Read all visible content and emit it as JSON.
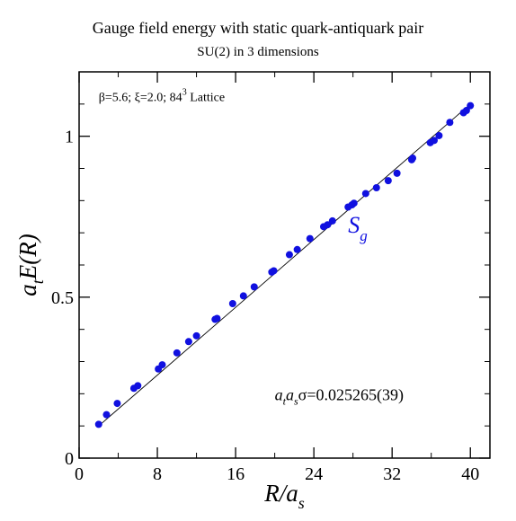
{
  "chart_data": {
    "type": "scatter",
    "title": "Gauge field energy with static quark-antiquark pair",
    "subtitle": "SU(2) in 3 dimensions",
    "xlabel": "R/a_s",
    "ylabel": "a_t E(R)",
    "xlabel_main": "R/a",
    "xlabel_sub": "s",
    "ylabel_pre": "a",
    "ylabel_sub": "t",
    "ylabel_post": "E(R)",
    "xlim": [
      0,
      42
    ],
    "ylim": [
      0,
      1.2
    ],
    "x_ticks": [
      0,
      8,
      16,
      24,
      32,
      40
    ],
    "y_ticks": [
      0,
      0.5,
      1
    ],
    "x_tick_labels": [
      "0",
      "8",
      "16",
      "24",
      "32",
      "40"
    ],
    "y_tick_labels": [
      "0",
      "0.5",
      "1"
    ],
    "grid": false,
    "legend": "none",
    "annotations": {
      "lattice": {
        "prefix": "β=5.6;  ξ=2.0; 84",
        "sup": "3",
        "suffix": " Lattice",
        "at": [
          2,
          1.11
        ]
      },
      "series_label": {
        "main": "S",
        "sub": "g",
        "at": [
          27.5,
          0.7
        ]
      },
      "sigma": {
        "a": "a",
        "sub1": "t",
        "a2": "a",
        "sub2": "s",
        "rest": "σ=0.025265(39)",
        "at": [
          20,
          0.18
        ]
      }
    },
    "fit_line": {
      "x": [
        2,
        40
      ],
      "y": [
        0.1,
        1.1
      ]
    },
    "series": [
      {
        "name": "S_g",
        "color": "#1010e0",
        "points": [
          [
            2.0,
            0.105
          ],
          [
            2.8,
            0.135
          ],
          [
            3.9,
            0.17
          ],
          [
            5.6,
            0.217
          ],
          [
            6.0,
            0.225
          ],
          [
            8.1,
            0.277
          ],
          [
            8.5,
            0.29
          ],
          [
            10.0,
            0.327
          ],
          [
            11.2,
            0.362
          ],
          [
            12.0,
            0.38
          ],
          [
            13.9,
            0.431
          ],
          [
            14.1,
            0.434
          ],
          [
            15.7,
            0.48
          ],
          [
            16.8,
            0.504
          ],
          [
            17.9,
            0.532
          ],
          [
            19.7,
            0.578
          ],
          [
            19.9,
            0.582
          ],
          [
            21.5,
            0.632
          ],
          [
            22.3,
            0.648
          ],
          [
            23.6,
            0.682
          ],
          [
            25.0,
            0.719
          ],
          [
            25.4,
            0.725
          ],
          [
            25.9,
            0.737
          ],
          [
            27.5,
            0.78
          ],
          [
            27.9,
            0.787
          ],
          [
            28.1,
            0.792
          ],
          [
            29.3,
            0.822
          ],
          [
            30.4,
            0.84
          ],
          [
            31.6,
            0.862
          ],
          [
            32.5,
            0.885
          ],
          [
            34.0,
            0.927
          ],
          [
            34.1,
            0.932
          ],
          [
            35.9,
            0.98
          ],
          [
            36.3,
            0.987
          ],
          [
            36.8,
            1.002
          ],
          [
            37.9,
            1.043
          ],
          [
            39.3,
            1.073
          ],
          [
            39.6,
            1.08
          ],
          [
            40.0,
            1.095
          ]
        ]
      }
    ]
  }
}
